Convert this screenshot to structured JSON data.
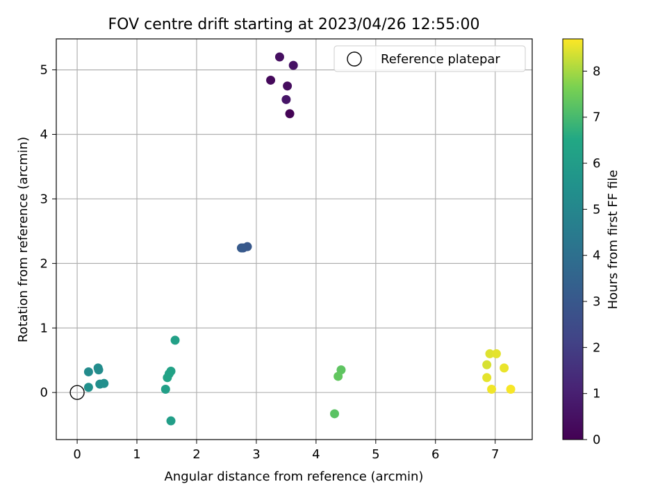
{
  "chart_data": {
    "type": "scatter",
    "title": "FOV centre drift starting at 2023/04/26 12:55:00",
    "xlabel": "Angular distance from reference (arcmin)",
    "ylabel": "Rotation from reference (arcmin)",
    "xlim": [
      -0.35,
      7.62
    ],
    "ylim": [
      -0.73,
      5.48
    ],
    "xticks": [
      0,
      1,
      2,
      3,
      4,
      5,
      6,
      7
    ],
    "yticks": [
      0,
      1,
      2,
      3,
      4,
      5
    ],
    "grid": true,
    "legend_position": "top-right",
    "reference": {
      "label": "Reference platepar",
      "x": 0,
      "y": 0,
      "marker": "open-circle"
    },
    "colorbar": {
      "label": "Hours from first FF file",
      "colormap": "viridis",
      "range": [
        0,
        8.7
      ],
      "ticks": [
        0,
        1,
        2,
        3,
        4,
        5,
        6,
        7,
        8
      ]
    },
    "points": [
      {
        "x": 3.62,
        "y": 5.07,
        "hours": 0.55
      },
      {
        "x": 3.39,
        "y": 5.2,
        "hours": 0.45
      },
      {
        "x": 3.24,
        "y": 4.84,
        "hours": 0.25
      },
      {
        "x": 3.52,
        "y": 4.75,
        "hours": 0.35
      },
      {
        "x": 3.5,
        "y": 4.54,
        "hours": 0.65
      },
      {
        "x": 3.56,
        "y": 4.32,
        "hours": 0.05
      },
      {
        "x": 2.78,
        "y": 2.24,
        "hours": 2.9
      },
      {
        "x": 2.85,
        "y": 2.26,
        "hours": 3.0
      },
      {
        "x": 2.75,
        "y": 2.24,
        "hours": 3.1
      },
      {
        "x": 0.19,
        "y": 0.32,
        "hours": 5.2
      },
      {
        "x": 0.35,
        "y": 0.38,
        "hours": 5.3
      },
      {
        "x": 0.36,
        "y": 0.35,
        "hours": 5.25
      },
      {
        "x": 0.38,
        "y": 0.13,
        "hours": 5.35
      },
      {
        "x": 0.45,
        "y": 0.14,
        "hours": 5.4
      },
      {
        "x": 0.19,
        "y": 0.08,
        "hours": 5.45
      },
      {
        "x": 1.64,
        "y": 0.81,
        "hours": 6.15
      },
      {
        "x": 1.57,
        "y": 0.33,
        "hours": 6.2
      },
      {
        "x": 1.54,
        "y": 0.29,
        "hours": 6.25
      },
      {
        "x": 1.51,
        "y": 0.23,
        "hours": 6.3
      },
      {
        "x": 1.48,
        "y": 0.05,
        "hours": 6.1
      },
      {
        "x": 1.57,
        "y": -0.44,
        "hours": 6.05
      },
      {
        "x": 4.42,
        "y": 0.35,
        "hours": 7.3
      },
      {
        "x": 4.37,
        "y": 0.25,
        "hours": 7.35
      },
      {
        "x": 4.31,
        "y": -0.33,
        "hours": 7.25
      },
      {
        "x": 6.91,
        "y": 0.6,
        "hours": 8.45
      },
      {
        "x": 7.02,
        "y": 0.6,
        "hours": 8.5
      },
      {
        "x": 6.86,
        "y": 0.43,
        "hours": 8.4
      },
      {
        "x": 7.15,
        "y": 0.38,
        "hours": 8.55
      },
      {
        "x": 6.86,
        "y": 0.23,
        "hours": 8.5
      },
      {
        "x": 6.94,
        "y": 0.05,
        "hours": 8.6
      },
      {
        "x": 7.26,
        "y": 0.05,
        "hours": 8.65
      }
    ]
  }
}
